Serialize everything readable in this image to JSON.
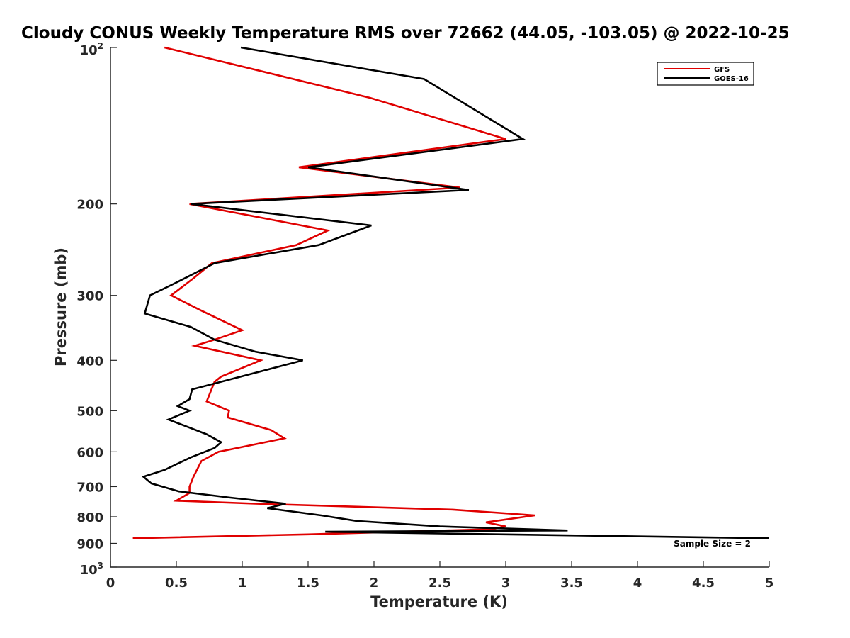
{
  "chart_data": {
    "type": "line",
    "title": "Cloudy CONUS Weekly Temperature RMS over 72662 (44.05, -103.05) @ 2022-10-25",
    "xlabel": "Temperature (K)",
    "ylabel": "Pressure (mb)",
    "xlim": [
      0,
      5
    ],
    "ylim": [
      100,
      1000
    ],
    "y_scale": "log",
    "y_reversed": true,
    "grid": false,
    "legend_position": "top-right",
    "x_ticks": [
      "0",
      "0.5",
      "1",
      "1.5",
      "2",
      "2.5",
      "3",
      "3.5",
      "4",
      "4.5",
      "5"
    ],
    "x_tick_values": [
      0,
      0.5,
      1,
      1.5,
      2,
      2.5,
      3,
      3.5,
      4,
      4.5,
      5
    ],
    "y_ticks": [
      "200",
      "300",
      "400",
      "500",
      "600",
      "700",
      "800",
      "900"
    ],
    "y_tick_values": [
      200,
      300,
      400,
      500,
      600,
      700,
      800,
      900
    ],
    "y_edge_labels": {
      "top": {
        "base": "10",
        "exp": "2",
        "value": 100
      },
      "bottom": {
        "base": "10",
        "exp": "3",
        "value": 1000
      }
    },
    "annotation": "Sample Size = 2",
    "series": [
      {
        "name": "GFS",
        "color": "#e00000",
        "points": [
          [
            0.41,
            100
          ],
          [
            1.97,
            125
          ],
          [
            3.0,
            150
          ],
          [
            1.43,
            170
          ],
          [
            2.65,
            186
          ],
          [
            0.6,
            200
          ],
          [
            1.65,
            225
          ],
          [
            1.41,
            240
          ],
          [
            0.77,
            260
          ],
          [
            0.63,
            278
          ],
          [
            0.46,
            300
          ],
          [
            0.68,
            320
          ],
          [
            1.0,
            350
          ],
          [
            0.79,
            365
          ],
          [
            0.64,
            375
          ],
          [
            1.14,
            400
          ],
          [
            0.84,
            430
          ],
          [
            0.79,
            440
          ],
          [
            0.73,
            480
          ],
          [
            0.9,
            500
          ],
          [
            0.89,
            515
          ],
          [
            1.22,
            545
          ],
          [
            1.32,
            565
          ],
          [
            0.82,
            600
          ],
          [
            0.69,
            625
          ],
          [
            0.63,
            670
          ],
          [
            0.6,
            700
          ],
          [
            0.6,
            720
          ],
          [
            0.5,
            745
          ],
          [
            1.1,
            755
          ],
          [
            2.6,
            775
          ],
          [
            3.22,
            795
          ],
          [
            2.85,
            820
          ],
          [
            3.0,
            835
          ],
          [
            2.9,
            845
          ],
          [
            1.5,
            865
          ],
          [
            0.17,
            880
          ]
        ]
      },
      {
        "name": "GOES-16",
        "color": "#000000",
        "points": [
          [
            0.99,
            100
          ],
          [
            2.38,
            115
          ],
          [
            3.13,
            150
          ],
          [
            1.5,
            170
          ],
          [
            2.72,
            188
          ],
          [
            0.61,
            200
          ],
          [
            1.98,
            220
          ],
          [
            1.58,
            240
          ],
          [
            0.79,
            260
          ],
          [
            0.48,
            285
          ],
          [
            0.3,
            300
          ],
          [
            0.26,
            325
          ],
          [
            0.61,
            345
          ],
          [
            0.79,
            365
          ],
          [
            1.1,
            385
          ],
          [
            1.46,
            400
          ],
          [
            0.62,
            455
          ],
          [
            0.6,
            475
          ],
          [
            0.51,
            490
          ],
          [
            0.6,
            500
          ],
          [
            0.44,
            520
          ],
          [
            0.73,
            555
          ],
          [
            0.84,
            575
          ],
          [
            0.79,
            590
          ],
          [
            0.61,
            615
          ],
          [
            0.41,
            650
          ],
          [
            0.25,
            670
          ],
          [
            0.31,
            690
          ],
          [
            0.52,
            715
          ],
          [
            0.91,
            735
          ],
          [
            1.33,
            755
          ],
          [
            1.19,
            770
          ],
          [
            1.6,
            795
          ],
          [
            1.87,
            815
          ],
          [
            2.5,
            835
          ],
          [
            3.47,
            850
          ],
          [
            1.63,
            855
          ],
          [
            5.0,
            880
          ]
        ]
      }
    ]
  }
}
